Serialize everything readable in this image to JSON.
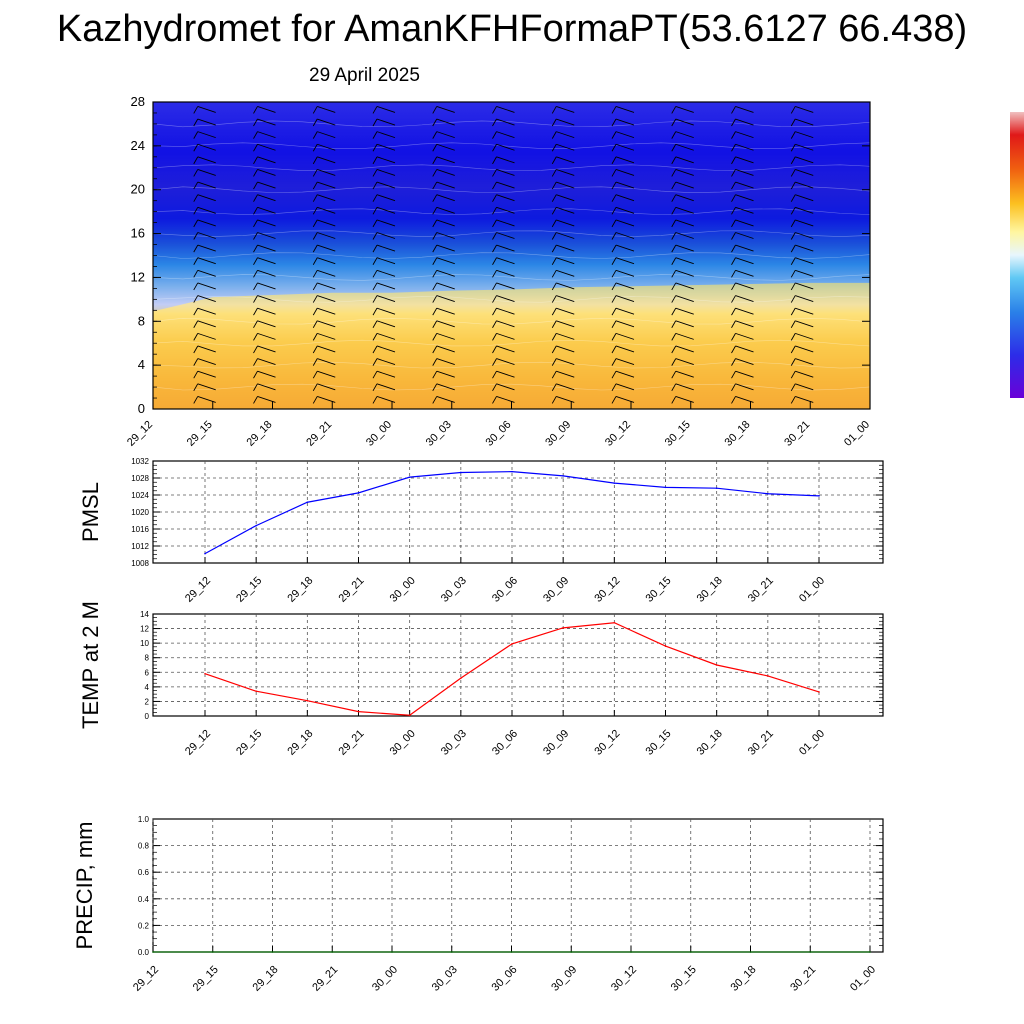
{
  "title": "Kazhydromet for AmanKFHFormaPT(53.6127 66.438)",
  "subtitle": "29 April 2025",
  "x_ticks": [
    "29_12",
    "29_15",
    "29_18",
    "29_21",
    "30_00",
    "30_03",
    "30_06",
    "30_09",
    "30_12",
    "30_15",
    "30_18",
    "30_21",
    "01_00"
  ],
  "colors": {
    "pmsl_line": "#0000ff",
    "temp_line": "#ff0000",
    "precip_line": "#006400",
    "grid": "#555555",
    "wind_barb": "#000000"
  },
  "chart_data": [
    {
      "type": "heatmap",
      "name": "cross-section",
      "xlabel": "",
      "ylabel": "",
      "ylim": [
        0,
        28
      ],
      "y_ticks": [
        "0",
        "4",
        "8",
        "12",
        "16",
        "20",
        "24",
        "28"
      ],
      "x": [
        "29_12",
        "29_15",
        "29_18",
        "29_21",
        "30_00",
        "30_03",
        "30_06",
        "30_09",
        "30_12",
        "30_15",
        "30_18",
        "30_21",
        "01_00"
      ],
      "freezing_level": [
        8.9,
        10.2,
        10.4,
        10.6,
        10.6,
        10.8,
        10.9,
        11.1,
        11.2,
        11.3,
        11.4,
        11.5,
        11.5
      ],
      "has_wind_barbs": true,
      "colorbar": "blue-white-yellow-red"
    },
    {
      "type": "line",
      "name": "PMSL",
      "ylabel": "PMSL",
      "ylim": [
        1008,
        1032
      ],
      "y_ticks": [
        "1008",
        "1012",
        "1016",
        "1020",
        "1024",
        "1028",
        "1032"
      ],
      "x": [
        "29_12",
        "29_15",
        "29_18",
        "29_21",
        "30_00",
        "30_03",
        "30_06",
        "30_09",
        "30_12",
        "30_15",
        "30_18",
        "30_21",
        "01_00"
      ],
      "values": [
        1010.2,
        1016.8,
        1022.3,
        1024.5,
        1028.2,
        1029.3,
        1029.5,
        1028.5,
        1026.8,
        1025.8,
        1025.6,
        1024.3,
        1023.8
      ],
      "grid": true
    },
    {
      "type": "line",
      "name": "TEMP",
      "ylabel": "TEMP at 2 M",
      "ylim": [
        0,
        14
      ],
      "y_ticks": [
        "0",
        "2",
        "4",
        "6",
        "8",
        "10",
        "12",
        "14"
      ],
      "x": [
        "29_12",
        "29_15",
        "29_18",
        "29_21",
        "30_00",
        "30_03",
        "30_06",
        "30_09",
        "30_12",
        "30_15",
        "30_18",
        "30_21",
        "01_00"
      ],
      "values": [
        5.8,
        3.4,
        2.1,
        0.6,
        0.1,
        5.2,
        9.9,
        12.1,
        12.8,
        9.6,
        7.0,
        5.5,
        3.3
      ],
      "grid": true
    },
    {
      "type": "line",
      "name": "PRECIP",
      "ylabel": "PRECIP, mm",
      "ylim": [
        0,
        1.0
      ],
      "y_ticks": [
        "0.0",
        "0.2",
        "0.4",
        "0.6",
        "0.8",
        "1.0"
      ],
      "x": [
        "29_12",
        "29_15",
        "29_18",
        "29_21",
        "30_00",
        "30_03",
        "30_06",
        "30_09",
        "30_12",
        "30_15",
        "30_18",
        "30_21",
        "01_00"
      ],
      "values": [
        0,
        0,
        0,
        0,
        0,
        0,
        0,
        0,
        0,
        0,
        0,
        0,
        0
      ],
      "grid": true
    }
  ]
}
